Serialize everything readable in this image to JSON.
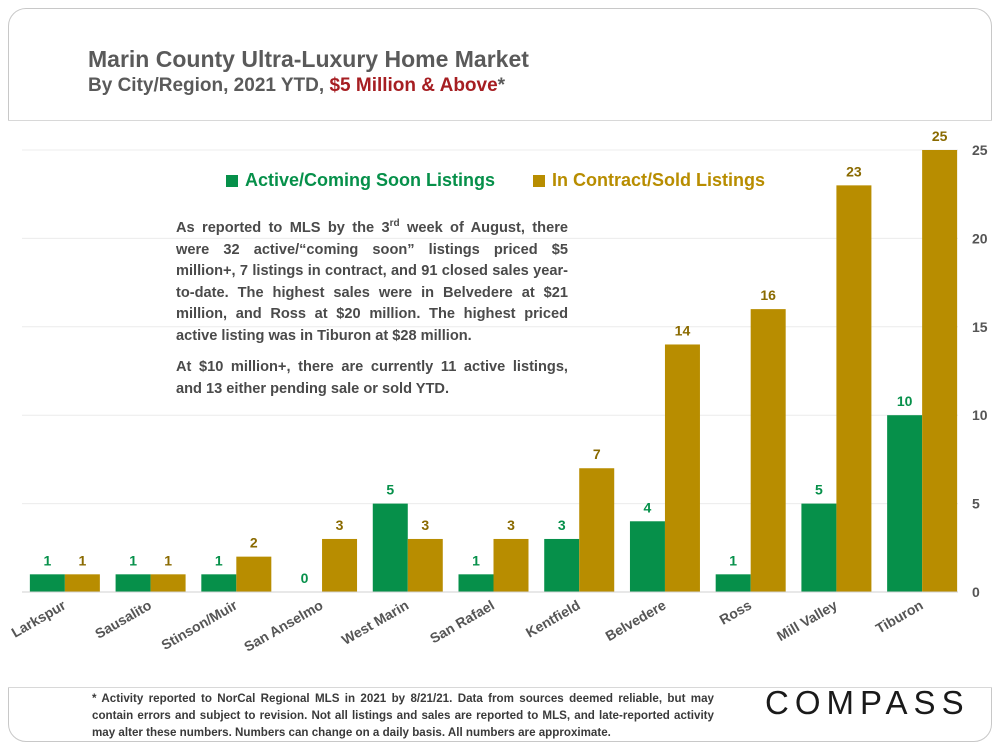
{
  "title": "Marin County Ultra-Luxury Home Market",
  "subtitle": {
    "prefix": "By City/Region, 2021 YTD, ",
    "highlight": "$5 Million & Above",
    "suffix": "*"
  },
  "colors": {
    "active": "#06904a",
    "sold": "#b88d00",
    "title": "#5a5a5a",
    "highlight": "#a61e22"
  },
  "note": {
    "p1_a": "As reported to MLS by the 3",
    "p1_sup": "rd",
    "p1_b": " week of August, there were 32 active/“coming soon” listings priced $5 million+, 7 listings in contract, and 91 closed sales year-to-date.  The highest sales were in Belvedere at $21 million, and Ross at $20 million. The highest priced active listing was in Tiburon at $28 million.",
    "p2": "At $10 million+, there are currently 11 active listings, and 13 either pending sale or sold YTD."
  },
  "footnote": "* Activity reported to NorCal Regional MLS in 2021 by 8/21/21. Data from sources deemed reliable, but may contain errors and subject to revision. Not all listings and sales are reported to MLS, and late-reported activity may alter these numbers. Numbers can change on a daily basis. All numbers are approximate.",
  "brand": "COMPASS",
  "chart_data": {
    "type": "bar",
    "categories": [
      "Larkspur",
      "Sausalito",
      "Stinson/Muir",
      "San Anselmo",
      "West Marin",
      "San Rafael",
      "Kentfield",
      "Belvedere",
      "Ross",
      "Mill Valley",
      "Tiburon"
    ],
    "series": [
      {
        "name": "Active/Coming Soon Listings",
        "values": [
          1,
          1,
          1,
          0,
          5,
          1,
          3,
          4,
          1,
          5,
          10
        ]
      },
      {
        "name": "In Contract/Sold Listings",
        "values": [
          1,
          1,
          2,
          3,
          3,
          3,
          7,
          14,
          16,
          23,
          25
        ]
      }
    ],
    "ylim": [
      0,
      25
    ],
    "yticks": [
      0,
      5,
      10,
      15,
      20,
      25
    ],
    "yaxis_position": "right",
    "legend_position": "top-left",
    "grid": true
  }
}
